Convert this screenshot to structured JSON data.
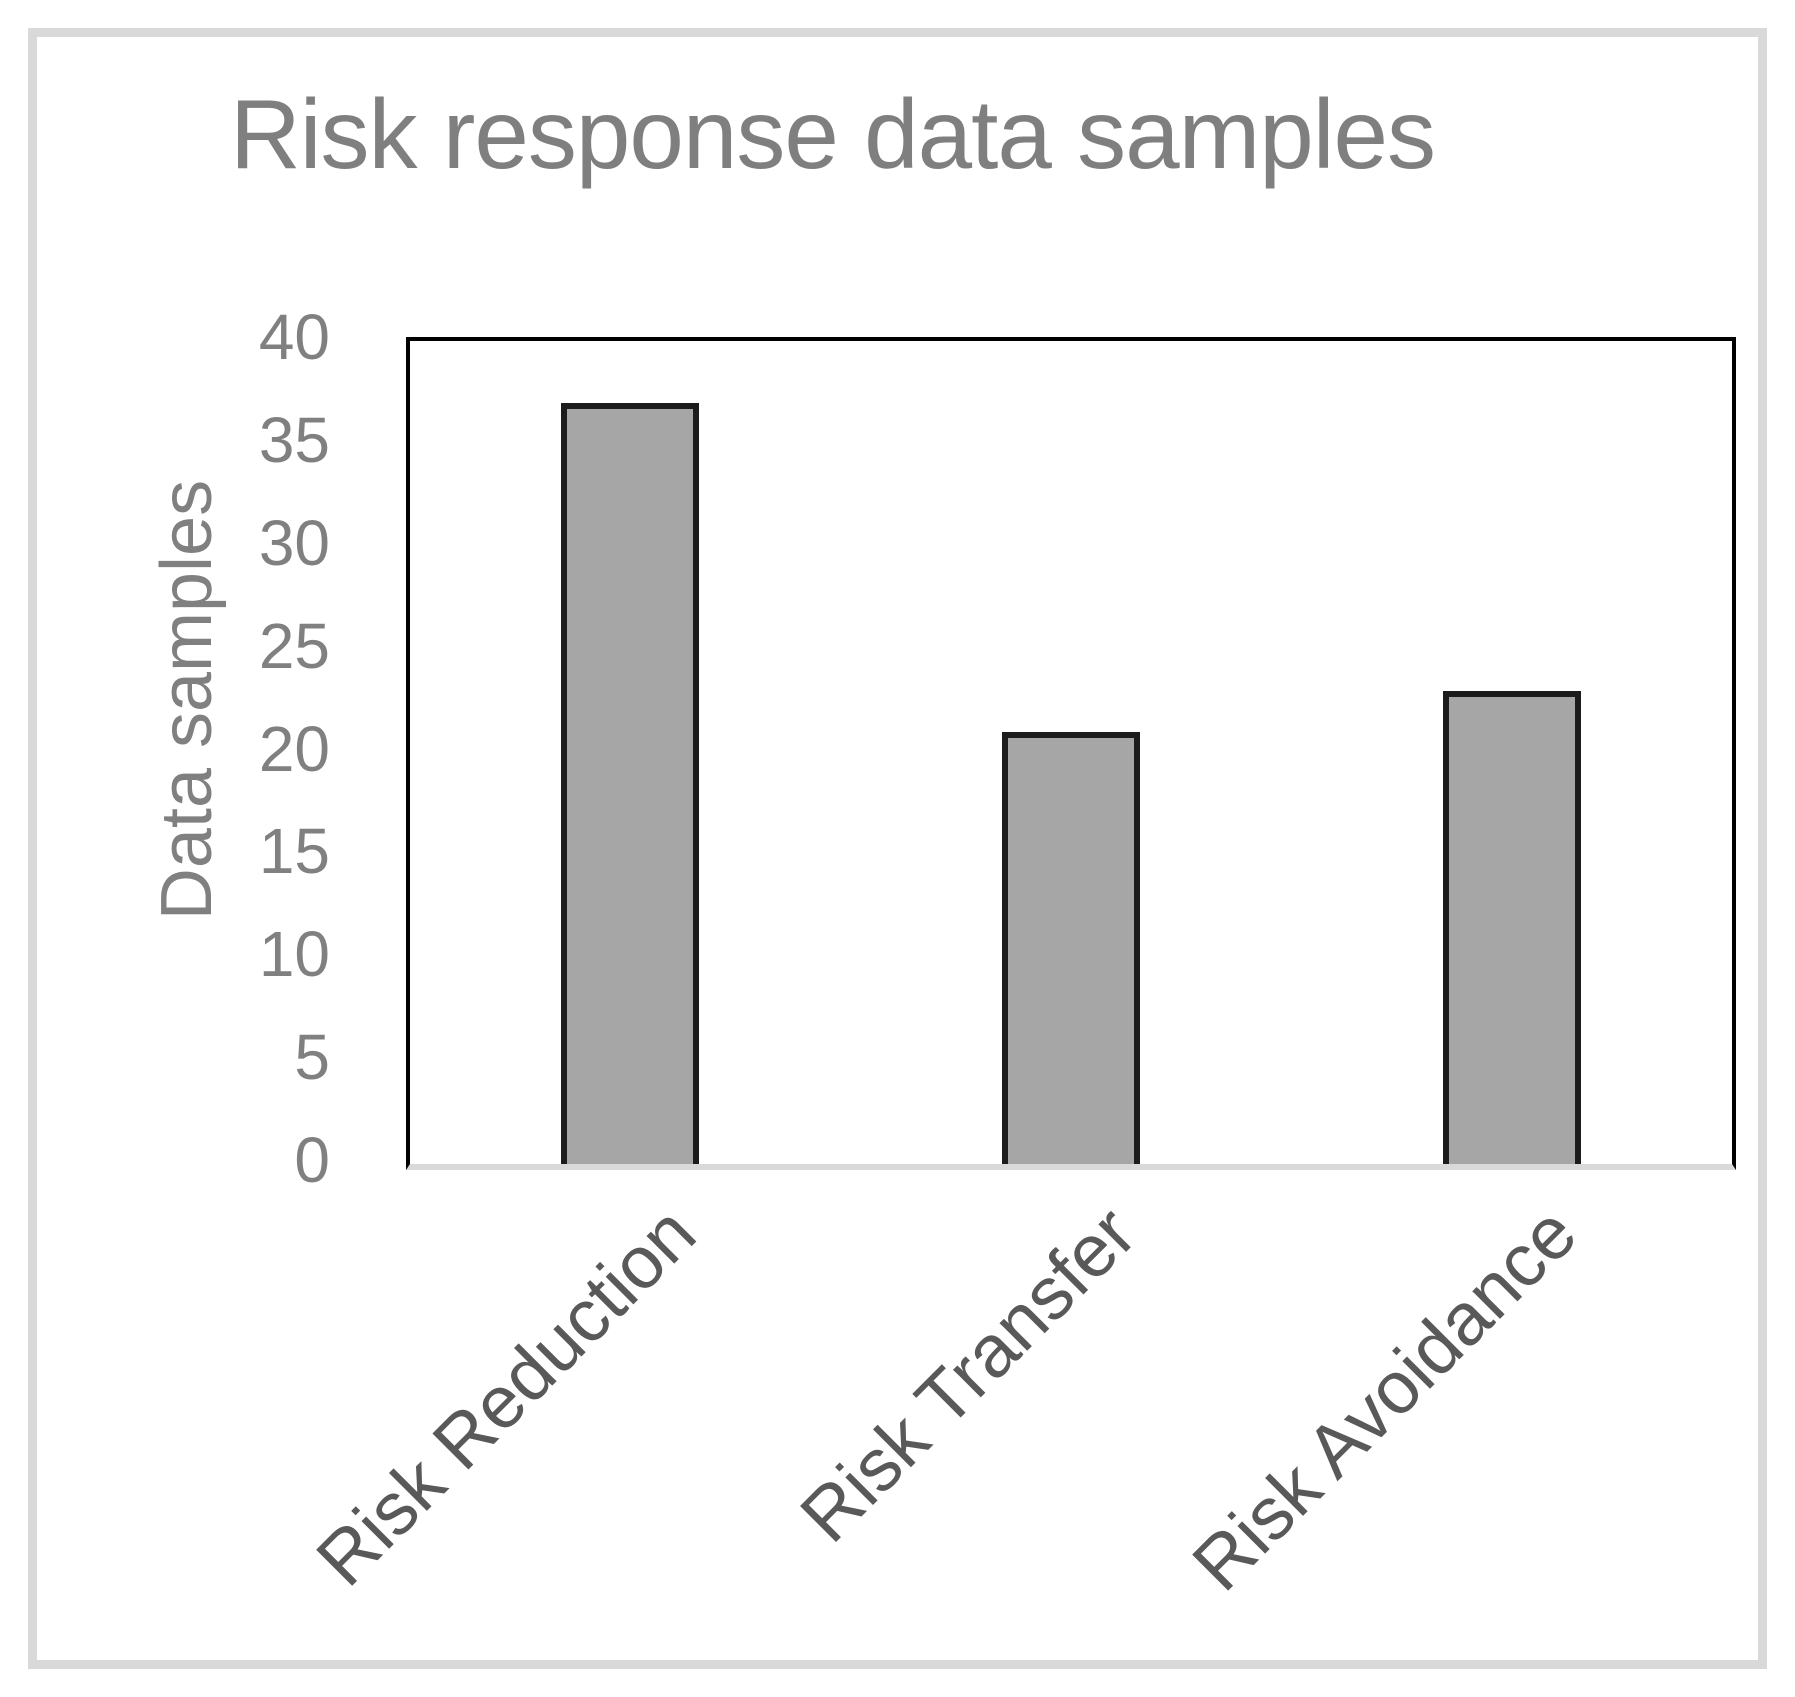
{
  "chart_data": {
    "type": "bar",
    "title": "Risk response data samples",
    "categories": [
      "Risk Reduction",
      "Risk Transfer",
      "Risk Avoidance"
    ],
    "values": [
      37,
      21,
      23
    ],
    "xlabel": "",
    "ylabel": "Data samples",
    "ylim": [
      0,
      40
    ],
    "yticks": [
      0,
      5,
      10,
      15,
      20,
      25,
      30,
      35,
      40
    ],
    "grid": false,
    "legend": "none",
    "bar_orientation": "vertical",
    "category_label_rotation_deg": -45,
    "colors": {
      "bar_fill": "#a6a6a6",
      "bar_border": "#1c1c1c",
      "title_color": "#7f7f7f",
      "axis_text_color": "#808080",
      "category_text_color": "#595959",
      "plot_border_color": "#000000",
      "axis_line_color": "#d9d9d9",
      "frame_color": "#d9d9d9",
      "background": "#ffffff"
    }
  }
}
